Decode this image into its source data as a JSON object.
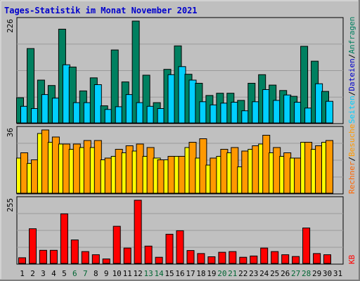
{
  "title": "Tages-Statistik im Monat November 2021",
  "chart_data": [
    {
      "type": "bar",
      "panel": "top",
      "ymax_label": "226",
      "categories": [
        "1",
        "2",
        "3",
        "4",
        "5",
        "6",
        "7",
        "8",
        "9",
        "10",
        "11",
        "12",
        "13",
        "14",
        "15",
        "16",
        "17",
        "18",
        "19",
        "20",
        "21",
        "22",
        "23",
        "24",
        "25",
        "26",
        "27",
        "28",
        "29",
        "30",
        "31"
      ],
      "series": [
        {
          "name": "Anfragen",
          "color": "#008060",
          "values": [
            56,
            165,
            95,
            83,
            208,
            124,
            71,
            100,
            38,
            162,
            91,
            226,
            106,
            45,
            119,
            171,
            108,
            88,
            61,
            66,
            66,
            50,
            88,
            107,
            84,
            72,
            59,
            170,
            137,
            70,
            0
          ]
        },
        {
          "name": "Seiten",
          "color": "#00cfff",
          "values": [
            37,
            32,
            63,
            55,
            129,
            45,
            45,
            85,
            30,
            36,
            63,
            45,
            37,
            32,
            107,
            125,
            95,
            47,
            40,
            44,
            46,
            27,
            47,
            74,
            50,
            62,
            46,
            33,
            87,
            48,
            0
          ]
        }
      ]
    },
    {
      "type": "bar",
      "panel": "middle",
      "ymax_label": "36",
      "categories": [
        "1",
        "2",
        "3",
        "4",
        "5",
        "6",
        "7",
        "8",
        "9",
        "10",
        "11",
        "12",
        "13",
        "14",
        "15",
        "16",
        "17",
        "18",
        "19",
        "20",
        "21",
        "22",
        "23",
        "24",
        "25",
        "26",
        "27",
        "28",
        "29",
        "30",
        "31"
      ],
      "series": [
        {
          "name": "Dateien",
          "color": "#ffff00",
          "values": [
            20,
            17,
            34,
            29,
            28,
            25,
            26,
            26,
            19,
            21,
            23,
            24,
            21,
            20,
            19,
            21,
            26,
            20,
            16,
            21,
            23,
            15,
            25,
            28,
            23,
            21,
            20,
            29,
            25,
            29,
            0
          ]
        },
        {
          "name": "Besuche",
          "color": "#ff9900",
          "values": [
            23,
            19,
            36,
            32,
            28,
            28,
            30,
            30,
            20,
            25,
            27,
            28,
            26,
            19,
            21,
            21,
            29,
            31,
            20,
            25,
            26,
            24,
            27,
            33,
            26,
            23,
            20,
            29,
            27,
            30,
            0
          ]
        }
      ]
    },
    {
      "type": "bar",
      "panel": "bottom",
      "ymax_label": "255",
      "categories": [
        "1",
        "2",
        "3",
        "4",
        "5",
        "6",
        "7",
        "8",
        "9",
        "10",
        "11",
        "12",
        "13",
        "14",
        "15",
        "16",
        "17",
        "18",
        "19",
        "20",
        "21",
        "22",
        "23",
        "24",
        "25",
        "26",
        "27",
        "28",
        "29",
        "30",
        "31"
      ],
      "series": [
        {
          "name": "kb",
          "color": "#ff0000",
          "values": [
            23,
            140,
            53,
            53,
            200,
            95,
            48,
            35,
            18,
            150,
            62,
            255,
            70,
            25,
            118,
            132,
            52,
            40,
            27,
            45,
            48,
            25,
            30,
            62,
            48,
            35,
            28,
            143,
            40,
            35,
            0
          ]
        }
      ]
    }
  ],
  "xaxis": {
    "labels": [
      "1",
      "2",
      "3",
      "4",
      "5",
      "6",
      "7",
      "8",
      "9",
      "10",
      "11",
      "12",
      "13",
      "14",
      "15",
      "16",
      "17",
      "18",
      "19",
      "20",
      "21",
      "22",
      "23",
      "24",
      "25",
      "26",
      "27",
      "28",
      "29",
      "30",
      "31"
    ],
    "weekend_days": [
      "6",
      "7",
      "13",
      "14",
      "20",
      "21",
      "27",
      "28"
    ],
    "weekday_color": "#000000",
    "weekend_color": "#006633"
  },
  "side_labels": [
    {
      "text": "Anfragen",
      "color": "#008060"
    },
    {
      "text": "/",
      "color": "#000000"
    },
    {
      "text": "Dateien",
      "color": "#0000cc"
    },
    {
      "text": "/",
      "color": "#000000"
    },
    {
      "text": "Seiten",
      "color": "#00cfff"
    },
    {
      "text": "/",
      "color": "#000000"
    },
    {
      "text": "Besuche",
      "color": "#ff9900"
    },
    {
      "text": "/",
      "color": "#000000"
    },
    {
      "text": "Rechner",
      "color": "#ff6600"
    },
    {
      "text": "KB",
      "color": "#ff0000"
    }
  ]
}
